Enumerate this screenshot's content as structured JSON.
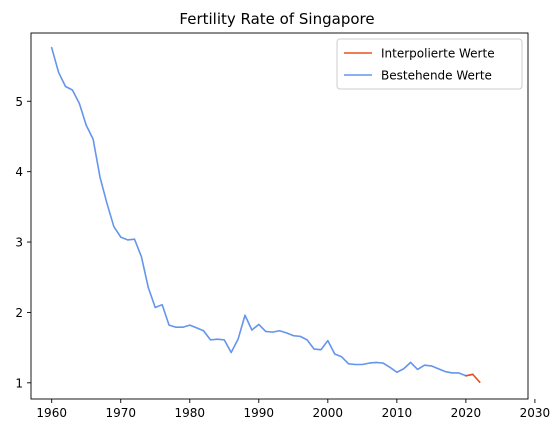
{
  "chart_data": {
    "type": "line",
    "title": "Fertility Rate of Singapore",
    "xlabel": "",
    "ylabel": "",
    "xlim": [
      1957,
      2029
    ],
    "ylim": [
      0.77,
      5.97
    ],
    "x_ticks": [
      1960,
      1970,
      1980,
      1990,
      2000,
      2010,
      2020,
      2030
    ],
    "y_ticks": [
      1,
      2,
      3,
      4,
      5
    ],
    "grid": false,
    "legend_position": "top-right",
    "series": [
      {
        "name": "Interpolierte Werte",
        "color": "#e8501e",
        "x": [
          2020,
          2021,
          2022
        ],
        "y": [
          1.1,
          1.12,
          1.01
        ]
      },
      {
        "name": "Bestehende Werte",
        "color": "#6495ed",
        "x": [
          1960,
          1961,
          1962,
          1963,
          1964,
          1965,
          1966,
          1967,
          1968,
          1969,
          1970,
          1971,
          1972,
          1973,
          1974,
          1975,
          1976,
          1977,
          1978,
          1979,
          1980,
          1981,
          1982,
          1983,
          1984,
          1985,
          1986,
          1987,
          1988,
          1989,
          1990,
          1991,
          1992,
          1993,
          1994,
          1995,
          1996,
          1997,
          1998,
          1999,
          2000,
          2001,
          2002,
          2003,
          2004,
          2005,
          2006,
          2007,
          2008,
          2009,
          2010,
          2011,
          2012,
          2013,
          2014,
          2015,
          2016,
          2017,
          2018,
          2019,
          2020,
          2021
        ],
        "y": [
          5.76,
          5.41,
          5.21,
          5.16,
          4.97,
          4.66,
          4.46,
          3.92,
          3.55,
          3.22,
          3.07,
          3.03,
          3.04,
          2.79,
          2.35,
          2.07,
          2.11,
          1.82,
          1.79,
          1.79,
          1.82,
          1.78,
          1.74,
          1.61,
          1.62,
          1.61,
          1.43,
          1.62,
          1.96,
          1.75,
          1.83,
          1.73,
          1.72,
          1.74,
          1.71,
          1.67,
          1.66,
          1.61,
          1.48,
          1.47,
          1.6,
          1.41,
          1.37,
          1.27,
          1.26,
          1.26,
          1.28,
          1.29,
          1.28,
          1.22,
          1.15,
          1.2,
          1.29,
          1.19,
          1.25,
          1.24,
          1.2,
          1.16,
          1.14,
          1.14,
          1.1,
          1.12
        ]
      }
    ]
  }
}
